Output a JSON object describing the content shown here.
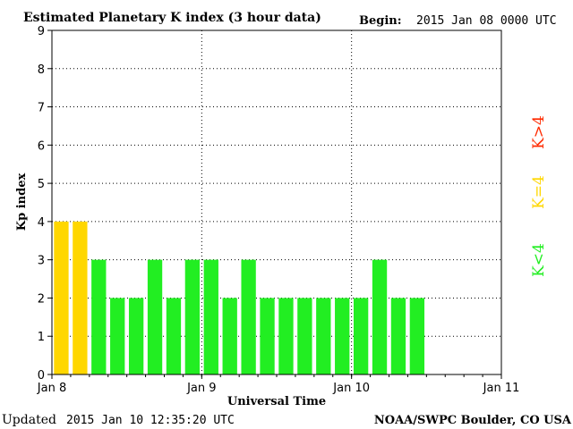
{
  "header": {
    "title": "Estimated Planetary K index (3 hour data)",
    "begin_label": "Begin:",
    "begin_value": "2015 Jan 08 0000 UTC"
  },
  "footer": {
    "updated_label": "Updated",
    "updated_value": "2015 Jan 10 12:35:20 UTC",
    "source": "NOAA/SWPC Boulder, CO USA"
  },
  "legend": {
    "items": [
      {
        "label": "K>4",
        "color": "#ff2a00"
      },
      {
        "label": "K=4",
        "color": "#ffd700"
      },
      {
        "label": "K<4",
        "color": "#22ee22"
      }
    ]
  },
  "colors": {
    "below_4": "#22ee22",
    "equal_4": "#ffd700",
    "above_4": "#ff2a00",
    "axis": "#000000",
    "grid": "#000000"
  },
  "chart_data": {
    "type": "bar",
    "title": "Estimated Planetary K index (3 hour data)",
    "xlabel": "Universal Time",
    "ylabel": "Kp index",
    "ylim": [
      0,
      9
    ],
    "xlim_days": [
      0,
      3
    ],
    "x_ticks": [
      "Jan 8",
      "Jan 9",
      "Jan 10",
      "Jan 11"
    ],
    "y_ticks": [
      "0",
      "1",
      "2",
      "3",
      "4",
      "5",
      "6",
      "7",
      "8",
      "9"
    ],
    "grid": "dotted",
    "legend_position": "right",
    "bar_interval_hours": 3,
    "values": [
      4,
      4,
      3,
      2,
      2,
      3,
      2,
      3,
      3,
      2,
      3,
      2,
      2,
      2,
      2,
      2,
      2,
      3,
      2,
      2
    ]
  }
}
